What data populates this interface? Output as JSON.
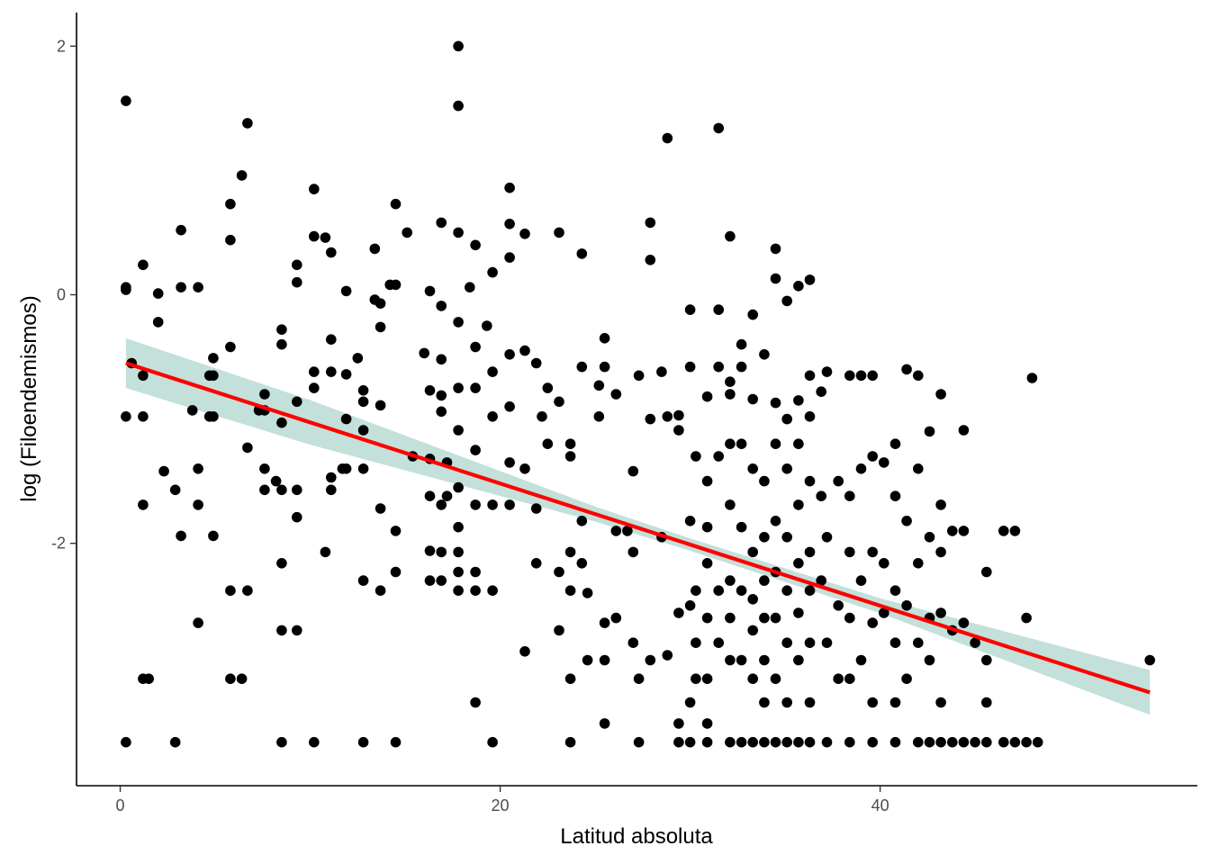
{
  "chart_data": {
    "type": "scatter",
    "title": "",
    "xlabel": "Latitud absoluta",
    "ylabel": "log (Filoendemismos)",
    "xlim": [
      -2.3,
      56.7
    ],
    "ylim": [
      -3.95,
      2.27
    ],
    "x_ticks": [
      0,
      20,
      40
    ],
    "y_ticks": [
      -2,
      0,
      2
    ],
    "grid": false,
    "legend": "none",
    "colors": {
      "points": "#000000",
      "fit_line": "#ff0000",
      "ribbon": "#a9d3cb"
    },
    "regression": {
      "x": [
        0.3,
        54.2
      ],
      "y": [
        -0.55,
        -3.2
      ],
      "ci_half_width": [
        0.2,
        0.18,
        0.06,
        0.05,
        0.06,
        0.18
      ],
      "ci_x": [
        0.3,
        10,
        25,
        30,
        40,
        54.2
      ]
    },
    "points": [
      [
        0.3,
        1.56
      ],
      [
        0.3,
        0.06
      ],
      [
        0.3,
        0.04
      ],
      [
        0.3,
        -0.98
      ],
      [
        0.3,
        -3.6
      ],
      [
        0.6,
        -0.55
      ],
      [
        1.2,
        0.24
      ],
      [
        1.2,
        -0.65
      ],
      [
        1.2,
        -0.98
      ],
      [
        1.2,
        -1.69
      ],
      [
        1.2,
        -3.09
      ],
      [
        1.5,
        -3.09
      ],
      [
        2.0,
        0.01
      ],
      [
        2.0,
        -0.22
      ],
      [
        2.3,
        -1.42
      ],
      [
        2.9,
        -1.57
      ],
      [
        2.9,
        -3.6
      ],
      [
        3.2,
        0.52
      ],
      [
        3.2,
        0.06
      ],
      [
        3.2,
        -1.94
      ],
      [
        3.8,
        -0.93
      ],
      [
        4.1,
        0.06
      ],
      [
        4.1,
        -1.4
      ],
      [
        4.1,
        -1.69
      ],
      [
        4.1,
        -2.64
      ],
      [
        4.7,
        -0.65
      ],
      [
        4.7,
        -0.98
      ],
      [
        4.9,
        -0.51
      ],
      [
        4.9,
        -0.65
      ],
      [
        4.9,
        -0.98
      ],
      [
        4.9,
        -1.94
      ],
      [
        5.8,
        0.73
      ],
      [
        5.8,
        0.44
      ],
      [
        5.8,
        -0.42
      ],
      [
        5.8,
        -2.38
      ],
      [
        5.8,
        -3.09
      ],
      [
        6.4,
        0.96
      ],
      [
        6.4,
        -3.09
      ],
      [
        6.7,
        1.38
      ],
      [
        6.7,
        -1.23
      ],
      [
        6.7,
        -2.38
      ],
      [
        7.3,
        -0.93
      ],
      [
        7.6,
        -0.8
      ],
      [
        7.6,
        -0.93
      ],
      [
        7.6,
        -1.4
      ],
      [
        7.6,
        -1.57
      ],
      [
        8.2,
        -1.5
      ],
      [
        8.5,
        -0.28
      ],
      [
        8.5,
        -0.4
      ],
      [
        8.5,
        -1.03
      ],
      [
        8.5,
        -1.57
      ],
      [
        8.5,
        -2.16
      ],
      [
        8.5,
        -2.7
      ],
      [
        8.5,
        -3.6
      ],
      [
        9.3,
        0.24
      ],
      [
        9.3,
        0.1
      ],
      [
        9.3,
        -0.86
      ],
      [
        9.3,
        -1.57
      ],
      [
        9.3,
        -1.79
      ],
      [
        9.3,
        -2.7
      ],
      [
        10.2,
        0.85
      ],
      [
        10.2,
        0.47
      ],
      [
        10.2,
        -0.62
      ],
      [
        10.2,
        -0.75
      ],
      [
        10.2,
        -3.6
      ],
      [
        10.8,
        0.46
      ],
      [
        10.8,
        -2.07
      ],
      [
        11.1,
        0.34
      ],
      [
        11.1,
        -0.36
      ],
      [
        11.1,
        -0.62
      ],
      [
        11.1,
        -1.47
      ],
      [
        11.1,
        -1.57
      ],
      [
        11.7,
        -1.4
      ],
      [
        11.9,
        0.03
      ],
      [
        11.9,
        -0.64
      ],
      [
        11.9,
        -1.0
      ],
      [
        11.9,
        -1.4
      ],
      [
        12.5,
        -0.51
      ],
      [
        12.8,
        -0.77
      ],
      [
        12.8,
        -0.86
      ],
      [
        12.8,
        -1.09
      ],
      [
        12.8,
        -1.4
      ],
      [
        12.8,
        -2.3
      ],
      [
        12.8,
        -3.6
      ],
      [
        13.4,
        0.37
      ],
      [
        13.4,
        -0.04
      ],
      [
        13.7,
        -0.07
      ],
      [
        13.7,
        -0.26
      ],
      [
        13.7,
        -0.89
      ],
      [
        13.7,
        -1.72
      ],
      [
        13.7,
        -2.38
      ],
      [
        14.2,
        0.08
      ],
      [
        14.5,
        0.73
      ],
      [
        14.5,
        0.08
      ],
      [
        14.5,
        -1.9
      ],
      [
        14.5,
        -2.23
      ],
      [
        14.5,
        -3.6
      ],
      [
        15.1,
        0.5
      ],
      [
        15.4,
        -1.3
      ],
      [
        16.0,
        -0.47
      ],
      [
        16.3,
        0.03
      ],
      [
        16.3,
        -0.77
      ],
      [
        16.3,
        -1.32
      ],
      [
        16.3,
        -1.62
      ],
      [
        16.3,
        -2.06
      ],
      [
        16.3,
        -2.3
      ],
      [
        16.9,
        0.58
      ],
      [
        16.9,
        -0.09
      ],
      [
        16.9,
        -0.52
      ],
      [
        16.9,
        -0.81
      ],
      [
        16.9,
        -0.94
      ],
      [
        16.9,
        -1.69
      ],
      [
        16.9,
        -2.07
      ],
      [
        16.9,
        -2.3
      ],
      [
        17.2,
        -1.35
      ],
      [
        17.2,
        -1.62
      ],
      [
        17.8,
        2.0
      ],
      [
        17.8,
        1.52
      ],
      [
        17.8,
        0.5
      ],
      [
        17.8,
        -0.22
      ],
      [
        17.8,
        -0.75
      ],
      [
        17.8,
        -1.09
      ],
      [
        17.8,
        -1.55
      ],
      [
        17.8,
        -1.87
      ],
      [
        17.8,
        -2.07
      ],
      [
        17.8,
        -2.23
      ],
      [
        17.8,
        -2.38
      ],
      [
        18.4,
        0.06
      ],
      [
        18.7,
        0.4
      ],
      [
        18.7,
        -0.42
      ],
      [
        18.7,
        -0.75
      ],
      [
        18.7,
        -1.25
      ],
      [
        18.7,
        -1.69
      ],
      [
        18.7,
        -2.23
      ],
      [
        18.7,
        -2.38
      ],
      [
        18.7,
        -3.28
      ],
      [
        19.3,
        -0.25
      ],
      [
        19.6,
        0.18
      ],
      [
        19.6,
        -0.62
      ],
      [
        19.6,
        -0.98
      ],
      [
        19.6,
        -1.69
      ],
      [
        19.6,
        -2.38
      ],
      [
        19.6,
        -3.6
      ],
      [
        20.5,
        0.86
      ],
      [
        20.5,
        0.57
      ],
      [
        20.5,
        0.3
      ],
      [
        20.5,
        -0.48
      ],
      [
        20.5,
        -0.9
      ],
      [
        20.5,
        -1.35
      ],
      [
        20.5,
        -1.69
      ],
      [
        21.3,
        0.49
      ],
      [
        21.3,
        -0.45
      ],
      [
        21.3,
        -1.4
      ],
      [
        21.3,
        -2.87
      ],
      [
        21.9,
        -0.55
      ],
      [
        21.9,
        -1.72
      ],
      [
        21.9,
        -2.16
      ],
      [
        22.2,
        -0.98
      ],
      [
        22.5,
        -0.75
      ],
      [
        22.5,
        -1.2
      ],
      [
        23.1,
        0.5
      ],
      [
        23.1,
        -0.86
      ],
      [
        23.1,
        -2.23
      ],
      [
        23.1,
        -2.7
      ],
      [
        23.7,
        -1.2
      ],
      [
        23.7,
        -1.3
      ],
      [
        23.7,
        -2.07
      ],
      [
        23.7,
        -2.38
      ],
      [
        23.7,
        -3.09
      ],
      [
        23.7,
        -3.6
      ],
      [
        24.3,
        0.33
      ],
      [
        24.3,
        -0.58
      ],
      [
        24.3,
        -1.82
      ],
      [
        24.3,
        -2.16
      ],
      [
        24.6,
        -2.4
      ],
      [
        24.6,
        -2.94
      ],
      [
        25.2,
        -0.73
      ],
      [
        25.2,
        -0.98
      ],
      [
        25.5,
        -0.35
      ],
      [
        25.5,
        -0.58
      ],
      [
        25.5,
        -2.64
      ],
      [
        25.5,
        -2.94
      ],
      [
        25.5,
        -3.45
      ],
      [
        26.1,
        -0.8
      ],
      [
        26.1,
        -1.9
      ],
      [
        26.1,
        -2.6
      ],
      [
        26.7,
        -1.9
      ],
      [
        27.0,
        -1.42
      ],
      [
        27.0,
        -2.07
      ],
      [
        27.0,
        -2.8
      ],
      [
        27.3,
        -0.65
      ],
      [
        27.3,
        -3.09
      ],
      [
        27.3,
        -3.6
      ],
      [
        27.9,
        0.58
      ],
      [
        27.9,
        0.28
      ],
      [
        27.9,
        -1.0
      ],
      [
        27.9,
        -2.94
      ],
      [
        28.5,
        -0.62
      ],
      [
        28.5,
        -1.95
      ],
      [
        28.8,
        1.26
      ],
      [
        28.8,
        -0.98
      ],
      [
        28.8,
        -2.9
      ],
      [
        29.4,
        -0.97
      ],
      [
        29.4,
        -1.09
      ],
      [
        29.4,
        -2.56
      ],
      [
        29.4,
        -3.45
      ],
      [
        29.4,
        -3.6
      ],
      [
        30.0,
        -0.12
      ],
      [
        30.0,
        -0.58
      ],
      [
        30.0,
        -1.82
      ],
      [
        30.0,
        -2.5
      ],
      [
        30.0,
        -3.28
      ],
      [
        30.0,
        -3.6
      ],
      [
        30.3,
        -1.3
      ],
      [
        30.3,
        -2.38
      ],
      [
        30.3,
        -2.8
      ],
      [
        30.3,
        -3.09
      ],
      [
        30.9,
        -0.82
      ],
      [
        30.9,
        -1.5
      ],
      [
        30.9,
        -1.87
      ],
      [
        30.9,
        -2.16
      ],
      [
        30.9,
        -2.6
      ],
      [
        30.9,
        -3.09
      ],
      [
        30.9,
        -3.45
      ],
      [
        30.9,
        -3.6
      ],
      [
        31.5,
        1.34
      ],
      [
        31.5,
        -0.12
      ],
      [
        31.5,
        -0.58
      ],
      [
        31.5,
        -1.3
      ],
      [
        31.5,
        -2.38
      ],
      [
        31.5,
        -2.8
      ],
      [
        32.1,
        0.47
      ],
      [
        32.1,
        -0.7
      ],
      [
        32.1,
        -0.8
      ],
      [
        32.1,
        -1.2
      ],
      [
        32.1,
        -1.69
      ],
      [
        32.1,
        -2.3
      ],
      [
        32.1,
        -2.6
      ],
      [
        32.1,
        -2.94
      ],
      [
        32.1,
        -3.6
      ],
      [
        32.7,
        -0.4
      ],
      [
        32.7,
        -0.58
      ],
      [
        32.7,
        -1.2
      ],
      [
        32.7,
        -1.87
      ],
      [
        32.7,
        -2.38
      ],
      [
        32.7,
        -2.94
      ],
      [
        32.7,
        -3.6
      ],
      [
        33.3,
        -0.16
      ],
      [
        33.3,
        -0.84
      ],
      [
        33.3,
        -1.4
      ],
      [
        33.3,
        -2.07
      ],
      [
        33.3,
        -2.45
      ],
      [
        33.3,
        -2.7
      ],
      [
        33.3,
        -3.09
      ],
      [
        33.3,
        -3.6
      ],
      [
        33.9,
        -0.48
      ],
      [
        33.9,
        -1.5
      ],
      [
        33.9,
        -1.95
      ],
      [
        33.9,
        -2.3
      ],
      [
        33.9,
        -2.6
      ],
      [
        33.9,
        -2.94
      ],
      [
        33.9,
        -3.28
      ],
      [
        33.9,
        -3.6
      ],
      [
        34.5,
        0.37
      ],
      [
        34.5,
        0.13
      ],
      [
        34.5,
        -0.87
      ],
      [
        34.5,
        -1.2
      ],
      [
        34.5,
        -1.82
      ],
      [
        34.5,
        -2.23
      ],
      [
        34.5,
        -2.6
      ],
      [
        34.5,
        -3.09
      ],
      [
        34.5,
        -3.6
      ],
      [
        35.1,
        -0.05
      ],
      [
        35.1,
        -1.0
      ],
      [
        35.1,
        -1.4
      ],
      [
        35.1,
        -1.95
      ],
      [
        35.1,
        -2.38
      ],
      [
        35.1,
        -2.8
      ],
      [
        35.1,
        -3.28
      ],
      [
        35.1,
        -3.6
      ],
      [
        35.7,
        0.07
      ],
      [
        35.7,
        -0.85
      ],
      [
        35.7,
        -1.2
      ],
      [
        35.7,
        -1.69
      ],
      [
        35.7,
        -2.16
      ],
      [
        35.7,
        -2.56
      ],
      [
        35.7,
        -2.94
      ],
      [
        35.7,
        -3.6
      ],
      [
        36.3,
        0.12
      ],
      [
        36.3,
        -0.65
      ],
      [
        36.3,
        -0.98
      ],
      [
        36.3,
        -1.5
      ],
      [
        36.3,
        -2.07
      ],
      [
        36.3,
        -2.38
      ],
      [
        36.3,
        -2.8
      ],
      [
        36.3,
        -3.28
      ],
      [
        36.3,
        -3.6
      ],
      [
        36.9,
        -0.78
      ],
      [
        36.9,
        -1.62
      ],
      [
        36.9,
        -2.3
      ],
      [
        37.2,
        -0.62
      ],
      [
        37.2,
        -1.95
      ],
      [
        37.2,
        -2.8
      ],
      [
        37.2,
        -3.6
      ],
      [
        37.8,
        -1.5
      ],
      [
        37.8,
        -2.5
      ],
      [
        37.8,
        -3.09
      ],
      [
        38.4,
        -0.65
      ],
      [
        38.4,
        -1.62
      ],
      [
        38.4,
        -2.07
      ],
      [
        38.4,
        -2.6
      ],
      [
        38.4,
        -3.09
      ],
      [
        38.4,
        -3.6
      ],
      [
        39.0,
        -0.65
      ],
      [
        39.0,
        -1.4
      ],
      [
        39.0,
        -2.3
      ],
      [
        39.0,
        -2.94
      ],
      [
        39.6,
        -0.65
      ],
      [
        39.6,
        -1.3
      ],
      [
        39.6,
        -2.07
      ],
      [
        39.6,
        -2.64
      ],
      [
        39.6,
        -3.28
      ],
      [
        39.6,
        -3.6
      ],
      [
        40.2,
        -1.35
      ],
      [
        40.2,
        -2.16
      ],
      [
        40.2,
        -2.56
      ],
      [
        40.8,
        -1.2
      ],
      [
        40.8,
        -1.62
      ],
      [
        40.8,
        -2.38
      ],
      [
        40.8,
        -2.8
      ],
      [
        40.8,
        -3.28
      ],
      [
        40.8,
        -3.6
      ],
      [
        41.4,
        -0.6
      ],
      [
        41.4,
        -1.82
      ],
      [
        41.4,
        -2.5
      ],
      [
        41.4,
        -3.09
      ],
      [
        42.0,
        -0.65
      ],
      [
        42.0,
        -1.4
      ],
      [
        42.0,
        -2.16
      ],
      [
        42.0,
        -2.8
      ],
      [
        42.0,
        -3.6
      ],
      [
        42.6,
        -1.1
      ],
      [
        42.6,
        -1.95
      ],
      [
        42.6,
        -2.6
      ],
      [
        42.6,
        -2.94
      ],
      [
        42.6,
        -3.6
      ],
      [
        43.2,
        -0.8
      ],
      [
        43.2,
        -1.69
      ],
      [
        43.2,
        -2.07
      ],
      [
        43.2,
        -2.56
      ],
      [
        43.2,
        -3.28
      ],
      [
        43.2,
        -3.6
      ],
      [
        43.8,
        -1.9
      ],
      [
        43.8,
        -2.7
      ],
      [
        43.8,
        -3.6
      ],
      [
        44.4,
        -1.09
      ],
      [
        44.4,
        -1.9
      ],
      [
        44.4,
        -2.64
      ],
      [
        44.4,
        -3.6
      ],
      [
        45.0,
        -2.8
      ],
      [
        45.0,
        -3.6
      ],
      [
        45.6,
        -2.23
      ],
      [
        45.6,
        -2.94
      ],
      [
        45.6,
        -3.28
      ],
      [
        45.6,
        -3.6
      ],
      [
        46.5,
        -1.9
      ],
      [
        46.5,
        -3.6
      ],
      [
        47.1,
        -1.9
      ],
      [
        47.1,
        -3.6
      ],
      [
        47.7,
        -2.6
      ],
      [
        47.7,
        -3.6
      ],
      [
        48.0,
        -0.67
      ],
      [
        48.3,
        -3.6
      ],
      [
        54.2,
        -2.94
      ]
    ]
  }
}
